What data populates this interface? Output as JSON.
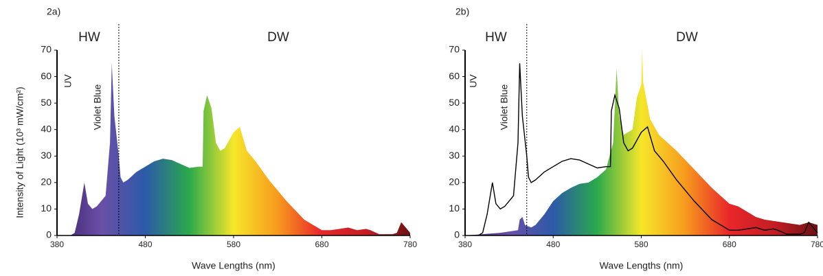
{
  "chart_data": [
    {
      "type": "area",
      "title": "2a)",
      "ylabel": "Intensity of Light (10³ mW/cm²)",
      "xlabel": "Wave Lengths (nm)",
      "annotations": [
        "HW",
        "DW",
        "UV",
        "Violet Blue"
      ],
      "divider_x": 450,
      "xlim": [
        380,
        780
      ],
      "xticks": [
        380,
        480,
        580,
        680,
        780
      ],
      "ylim": [
        0,
        70
      ],
      "yticks": [
        0,
        10,
        20,
        30,
        40,
        50,
        60,
        70
      ],
      "series": [
        {
          "style": "area",
          "colors": [
            "#3a2168",
            "#6b4fa8",
            "#2c5aa8",
            "#2aaa4b",
            "#f6e72a",
            "#f79a1e",
            "#e8262a",
            "#c41e24",
            "#6e1012"
          ],
          "x": [
            395,
            400,
            405,
            411,
            415,
            420,
            425,
            430,
            435,
            440,
            442,
            445,
            450,
            452,
            455,
            460,
            470,
            480,
            490,
            500,
            510,
            520,
            530,
            540,
            545,
            546,
            550,
            555,
            560,
            565,
            570,
            580,
            587,
            595,
            605,
            620,
            640,
            660,
            680,
            690,
            700,
            710,
            720,
            730,
            735,
            745,
            760,
            765,
            770,
            775,
            780
          ],
          "values": [
            0,
            1,
            8,
            20,
            12,
            10,
            11,
            13,
            15,
            35,
            65,
            45,
            30,
            22,
            20,
            21,
            24,
            26,
            28,
            29,
            28.5,
            27,
            25.5,
            26,
            26,
            47,
            53,
            48,
            35,
            32,
            33,
            39,
            41,
            32,
            28,
            21,
            13,
            6,
            2,
            2,
            2.5,
            3,
            2,
            2.5,
            2,
            0.5,
            0.5,
            1,
            5,
            3,
            1
          ]
        }
      ]
    },
    {
      "type": "area",
      "title": "2b)",
      "xlabel": "Wave Lengths (nm)",
      "annotations": [
        "HW",
        "DW",
        "UV",
        "Violet Blue"
      ],
      "divider_x": 450,
      "xlim": [
        380,
        780
      ],
      "xticks": [
        380,
        480,
        580,
        680,
        780
      ],
      "ylim": [
        0,
        70
      ],
      "yticks": [
        0,
        10,
        20,
        30,
        40,
        50,
        60,
        70
      ],
      "series": [
        {
          "style": "area",
          "colors": [
            "#3a2168",
            "#6b4fa8",
            "#2c5aa8",
            "#2aaa4b",
            "#f6e72a",
            "#f79a1e",
            "#e8262a",
            "#c41e24",
            "#6e1012"
          ],
          "x": [
            380,
            400,
            420,
            440,
            442,
            445,
            448,
            455,
            460,
            470,
            480,
            490,
            500,
            510,
            520,
            530,
            540,
            548,
            552,
            555,
            560,
            570,
            575,
            580,
            581,
            582,
            590,
            600,
            620,
            640,
            660,
            680,
            690,
            700,
            710,
            720,
            740,
            760,
            770,
            780
          ],
          "values": [
            0,
            0.5,
            1,
            2,
            6,
            7,
            4,
            3,
            4,
            8,
            13,
            16,
            18,
            19.5,
            20,
            22,
            25,
            35,
            63,
            45,
            38,
            40,
            52,
            57,
            70,
            58,
            44,
            38,
            32,
            25,
            18,
            12,
            11,
            9,
            7,
            6,
            5,
            4,
            5,
            4
          ]
        },
        {
          "style": "line",
          "color": "#000000",
          "x": [
            395,
            400,
            405,
            411,
            415,
            420,
            425,
            430,
            435,
            440,
            442,
            445,
            450,
            452,
            455,
            460,
            470,
            480,
            490,
            500,
            510,
            520,
            530,
            540,
            545,
            546,
            550,
            555,
            560,
            565,
            570,
            580,
            587,
            595,
            605,
            620,
            640,
            660,
            680,
            690,
            700,
            710,
            720,
            730,
            735,
            745,
            760,
            765,
            770,
            775,
            780
          ],
          "values": [
            0,
            1,
            8,
            20,
            12,
            10,
            11,
            13,
            15,
            35,
            65,
            45,
            30,
            22,
            20,
            21,
            24,
            26,
            28,
            29,
            28.5,
            27,
            25.5,
            26,
            26,
            47,
            53,
            48,
            35,
            32,
            33,
            39,
            41,
            32,
            28,
            21,
            13,
            6,
            2,
            2,
            2.5,
            3,
            2,
            2.5,
            2,
            0.5,
            0.5,
            1,
            5,
            3,
            1
          ]
        }
      ]
    }
  ]
}
